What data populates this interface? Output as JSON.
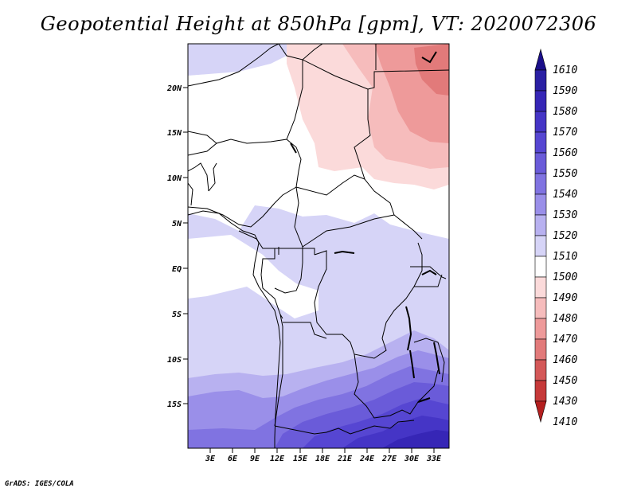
{
  "title": "Geopotential Height at 850hPa [gpm], VT: 2020072306",
  "credit": "GrADS: IGES/COLA",
  "map": {
    "lat_ticks": [
      "20N",
      "15N",
      "10N",
      "5N",
      "EQ",
      "5S",
      "10S",
      "15S"
    ],
    "lon_ticks": [
      "3E",
      "6E",
      "9E",
      "12E",
      "15E",
      "18E",
      "21E",
      "24E",
      "27E",
      "30E",
      "33E"
    ]
  },
  "colorbar": {
    "levels": [
      "1610",
      "1590",
      "1580",
      "1570",
      "1560",
      "1550",
      "1540",
      "1530",
      "1520",
      "1510",
      "1500",
      "1490",
      "1480",
      "1470",
      "1460",
      "1450",
      "1430",
      "1410"
    ],
    "colors": [
      "#1b0f8a",
      "#2a1fa3",
      "#3626b6",
      "#4535c6",
      "#5646d2",
      "#6a5bd9",
      "#8073e1",
      "#9a8fe9",
      "#b8b1f0",
      "#d6d4f7",
      "#ffffff",
      "#fbdada",
      "#f6bcbc",
      "#ee9a9a",
      "#e27a7a",
      "#d45858",
      "#c63939",
      "#b41f1f"
    ]
  }
}
